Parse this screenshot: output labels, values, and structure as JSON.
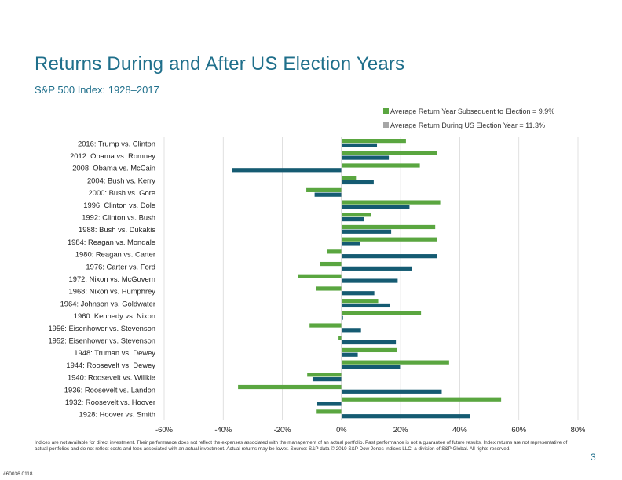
{
  "title": "Returns During and After US Election Years",
  "subtitle": "S&P 500 Index: 1928–2017",
  "legend": {
    "subsequent": "Average Return Year Subsequent to Election = 9.9%",
    "during": "Average Return During US Election Year = 11.3%"
  },
  "colors": {
    "subsequent": "#5aa640",
    "during": "#155b72",
    "grid": "#d9d9d9",
    "legend_during_swatch": "#a6a6a6"
  },
  "footnote": "Indices are not available for direct investment. Their performance does not reflect the expenses associated with the management of an actual portfolio. Past performance is not a guarantee of future results. Index returns are not representative of actual portfolios and do not reflect costs and fees associated with an actual investment. Actual returns may be lower. Source: S&P data © 2019 S&P Dow Jones Indices LLC, a division of S&P Global. All rights reserved.",
  "page_number": "3",
  "doc_code": "#60036 0118",
  "chart_data": {
    "type": "bar",
    "orientation": "horizontal",
    "title": "Returns During and After US Election Years",
    "subtitle": "S&P 500 Index: 1928–2017",
    "xlim": [
      -60,
      80
    ],
    "x_ticks": [
      -60,
      -40,
      -20,
      0,
      20,
      40,
      60,
      80
    ],
    "x_tick_labels": [
      "-60%",
      "-40%",
      "-20%",
      "0%",
      "20%",
      "40%",
      "60%",
      "80%"
    ],
    "grid": true,
    "legend_position": "top-right",
    "categories": [
      "2016: Trump vs. Clinton",
      "2012: Obama vs. Romney",
      "2008: Obama vs. McCain",
      "2004: Bush vs. Kerry",
      "2000: Bush vs. Gore",
      "1996: Clinton vs. Dole",
      "1992: Clinton vs. Bush",
      "1988: Bush vs. Dukakis",
      "1984: Reagan vs. Mondale",
      "1980: Reagan vs. Carter",
      "1976: Carter vs. Ford",
      "1972: Nixon vs. McGovern",
      "1968: Nixon vs. Humphrey",
      "1964: Johnson vs. Goldwater",
      "1960: Kennedy vs. Nixon",
      "1956: Eisenhower vs. Stevenson",
      "1952: Eisenhower vs. Stevenson",
      "1948: Truman vs. Dewey",
      "1944: Roosevelt vs. Dewey",
      "1940: Roosevelt vs. Willkie",
      "1936: Roosevelt vs. Landon",
      "1932: Roosevelt vs. Hoover",
      "1928: Hoover vs. Smith"
    ],
    "series": [
      {
        "name": "Average Return Year Subsequent to Election = 9.9%",
        "values": [
          21.8,
          32.4,
          26.5,
          4.9,
          -11.9,
          33.4,
          10.1,
          31.7,
          32.2,
          -4.9,
          -7.2,
          -14.7,
          -8.5,
          12.4,
          26.9,
          -10.8,
          -1.0,
          18.7,
          36.4,
          -11.6,
          -35.0,
          54.0,
          -8.4
        ]
      },
      {
        "name": "Average Return During US Election Year = 11.3%",
        "values": [
          12.0,
          16.0,
          -37.0,
          10.9,
          -9.1,
          23.0,
          7.6,
          16.8,
          6.3,
          32.4,
          23.8,
          19.0,
          11.1,
          16.5,
          0.5,
          6.6,
          18.4,
          5.5,
          19.8,
          -9.8,
          33.9,
          -8.2,
          43.6
        ]
      }
    ]
  }
}
